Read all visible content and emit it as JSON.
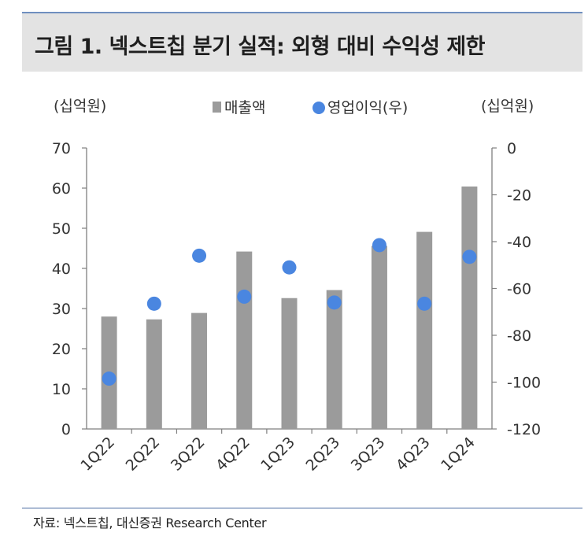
{
  "title": "그림 1. 넥스트칩 분기 실적: 외형 대비 수익성 제한",
  "source": "자료: 넥스트칩, 대신증권 Research Center",
  "colors": {
    "bar": "#9b9b9b",
    "dot": "#4a86e0",
    "axis": "#7f7f7f"
  },
  "chart_data": {
    "type": "bar",
    "categories": [
      "1Q22",
      "2Q22",
      "3Q22",
      "4Q22",
      "1Q23",
      "2Q23",
      "3Q23",
      "4Q23",
      "1Q24"
    ],
    "series": [
      {
        "name": "매출액",
        "type": "bar",
        "axis": "left",
        "values": [
          28.0,
          27.3,
          28.9,
          44.2,
          32.6,
          34.6,
          45.6,
          49.1,
          60.4
        ]
      },
      {
        "name": "영업이익(우)",
        "type": "scatter",
        "axis": "right",
        "values": [
          -98.5,
          -66.5,
          -46.0,
          -63.5,
          -51.0,
          -66.0,
          -41.5,
          -66.5,
          -46.5
        ]
      }
    ],
    "left_axis": {
      "unit_label": "(십억원)",
      "ylim": [
        0,
        70
      ],
      "ticks": [
        "70",
        "60",
        "50",
        "40",
        "30",
        "20",
        "10",
        "0"
      ]
    },
    "right_axis": {
      "unit_label": "(십억원)",
      "ylim": [
        -120,
        0
      ],
      "ticks": [
        "0",
        "-20",
        "-40",
        "-60",
        "-80",
        "-100",
        "-120"
      ]
    },
    "legend": [
      "매출액",
      "영업이익(우)"
    ],
    "legend_position": "top-center"
  }
}
